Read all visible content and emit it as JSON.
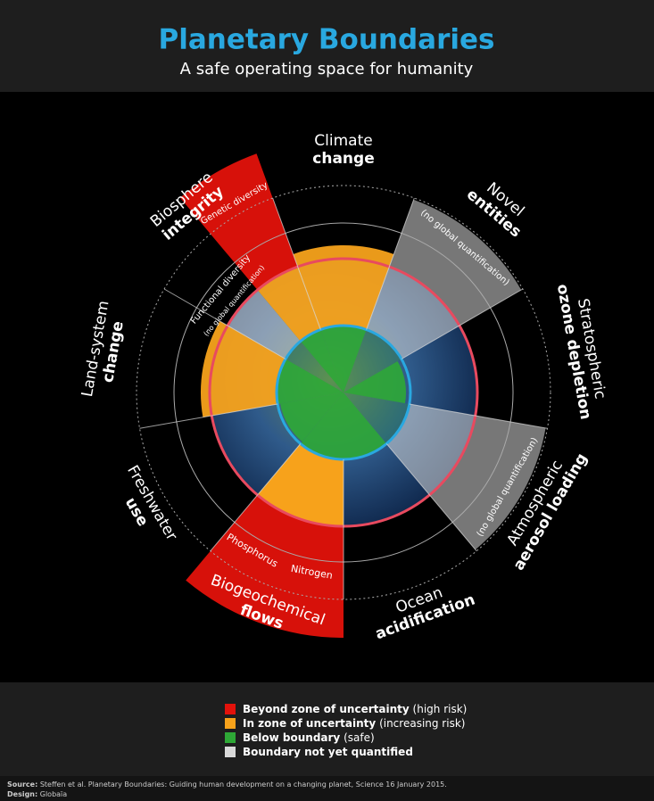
{
  "header": {
    "title": "Planetary Boundaries",
    "subtitle": "A safe operating space for humanity"
  },
  "boundaries": [
    {
      "light": "Climate",
      "bold": "change"
    },
    {
      "light": "Novel",
      "bold": "entities"
    },
    {
      "light": "Stratospheric",
      "bold": "ozone depletion"
    },
    {
      "light": "Atmospheric",
      "bold": "aerosol loading"
    },
    {
      "light": "Ocean",
      "bold": "acidification"
    },
    {
      "light": "Biogeochemical",
      "bold": "flows"
    },
    {
      "light": "Freshwater",
      "bold": "use"
    },
    {
      "light": "Land-system",
      "bold": "change"
    },
    {
      "light": "Biosphere",
      "bold": "integrity"
    }
  ],
  "sublabels": {
    "genetic": "Genetic diversity",
    "functional": "Functional diversity",
    "biosphere_note": "(no global quantification)",
    "novel_note": "(no global quantification)",
    "aerosol_note": "(no global quantification)",
    "phosphorus": "Phosphorus",
    "nitrogen": "Nitrogen"
  },
  "legend": [
    {
      "bold": "Beyond zone of uncertainty",
      "text": "(high risk)",
      "color": "#e3120b"
    },
    {
      "bold": "In zone of uncertainty",
      "text": "(increasing risk)",
      "color": "#f7a21b"
    },
    {
      "bold": "Below boundary",
      "text": "(safe)",
      "color": "#2ea836"
    },
    {
      "bold": "Boundary not yet quantified",
      "text": "",
      "color": "#d9d9d9"
    }
  ],
  "footer": {
    "source_label": "Source:",
    "source_text": "Steffen et al. Planetary Boundaries: Guiding human development on a changing planet, Science 16 January 2015.",
    "design_label": "Design:",
    "design_text": "Globaïa"
  }
}
